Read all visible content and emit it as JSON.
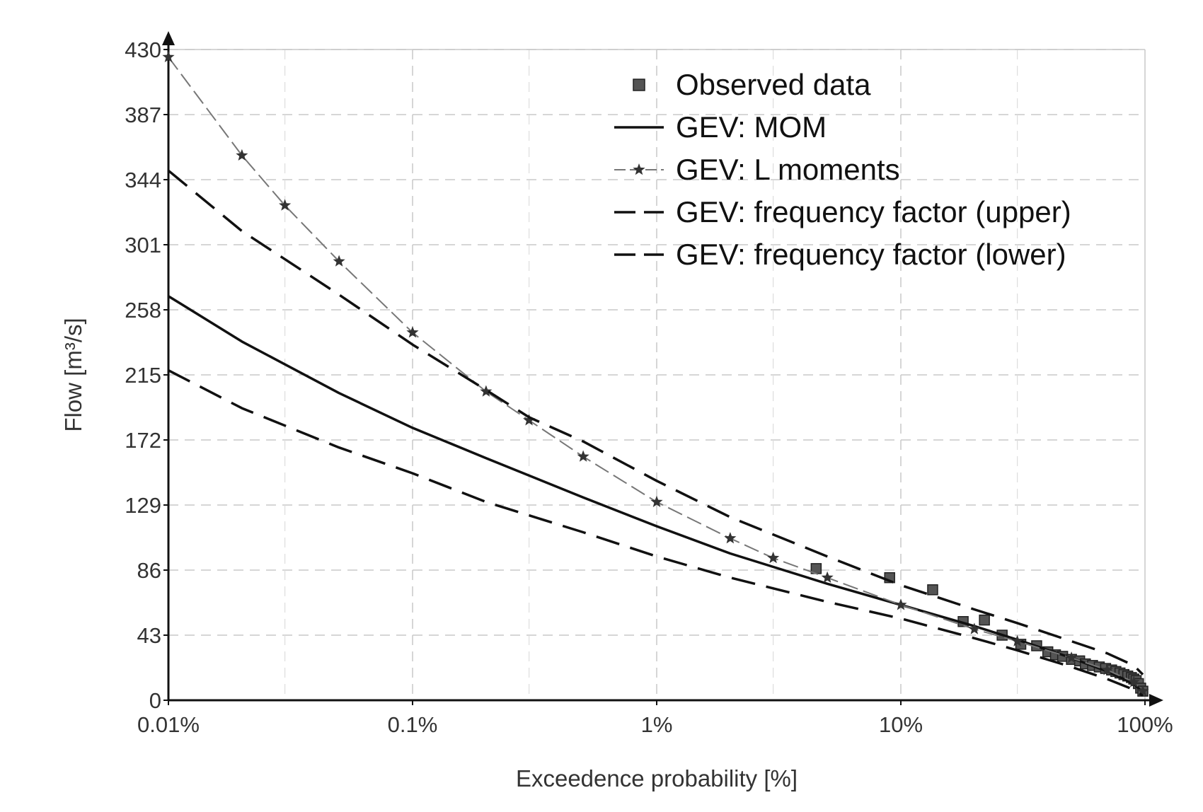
{
  "chart_data": {
    "type": "line",
    "xlabel": "Exceedence probability [%]",
    "ylabel": "Flow [m³/s]",
    "x_scale": "log",
    "xlim": [
      0.01,
      100
    ],
    "ylim": [
      0,
      430
    ],
    "x_ticks": [
      0.01,
      0.1,
      1,
      10,
      100
    ],
    "x_tick_labels": [
      "0.01%",
      "0.1%",
      "1%",
      "10%",
      "100%"
    ],
    "y_ticks": [
      0,
      43,
      86,
      129,
      172,
      215,
      258,
      301,
      344,
      387,
      430
    ],
    "y_tick_labels": [
      "0",
      "43",
      "86",
      "129",
      "172",
      "215",
      "258",
      "301",
      "344",
      "387",
      "430"
    ],
    "grid": true,
    "legend_position": "top-right",
    "series": [
      {
        "name": "Observed data",
        "style": "markers",
        "marker": "square",
        "color": "#555555",
        "points": [
          [
            4.5,
            87
          ],
          [
            9,
            81
          ],
          [
            13.5,
            73
          ],
          [
            18,
            52
          ],
          [
            22,
            53
          ],
          [
            26,
            43
          ],
          [
            31,
            37
          ],
          [
            36,
            36
          ],
          [
            40,
            32
          ],
          [
            43,
            30
          ],
          [
            46,
            29
          ],
          [
            50,
            27
          ],
          [
            54,
            26
          ],
          [
            57,
            24
          ],
          [
            61,
            23
          ],
          [
            65,
            22
          ],
          [
            69,
            21
          ],
          [
            73,
            20
          ],
          [
            76,
            19
          ],
          [
            79,
            18
          ],
          [
            82,
            17
          ],
          [
            85,
            16
          ],
          [
            88,
            15
          ],
          [
            90,
            14
          ],
          [
            92,
            13
          ],
          [
            94,
            11
          ],
          [
            96,
            8
          ],
          [
            98,
            6
          ]
        ]
      },
      {
        "name": "GEV: MOM",
        "style": "solid",
        "color": "#111111",
        "points": [
          [
            0.01,
            267
          ],
          [
            0.02,
            237
          ],
          [
            0.05,
            203
          ],
          [
            0.1,
            180
          ],
          [
            0.2,
            160
          ],
          [
            0.5,
            134
          ],
          [
            1,
            115
          ],
          [
            2,
            97
          ],
          [
            5,
            77
          ],
          [
            10,
            63
          ],
          [
            20,
            49
          ],
          [
            30,
            40
          ],
          [
            50,
            28
          ],
          [
            70,
            19
          ],
          [
            90,
            11
          ],
          [
            98,
            5
          ]
        ]
      },
      {
        "name": "GEV: L moments",
        "style": "dashed-star",
        "marker": "star",
        "color": "#777777",
        "points": [
          [
            0.01,
            425
          ],
          [
            0.02,
            360
          ],
          [
            0.03,
            327
          ],
          [
            0.05,
            290
          ],
          [
            0.1,
            243
          ],
          [
            0.2,
            204
          ],
          [
            0.3,
            185
          ],
          [
            0.5,
            161
          ],
          [
            1,
            131
          ],
          [
            2,
            107
          ],
          [
            3,
            94
          ],
          [
            5,
            81
          ],
          [
            10,
            63
          ],
          [
            20,
            47
          ],
          [
            30,
            39
          ],
          [
            50,
            28
          ],
          [
            70,
            20
          ],
          [
            90,
            12
          ],
          [
            98,
            6
          ]
        ]
      },
      {
        "name": "GEV: frequency factor (upper)",
        "style": "dashed",
        "color": "#111111",
        "points": [
          [
            0.01,
            350
          ],
          [
            0.02,
            310
          ],
          [
            0.05,
            268
          ],
          [
            0.1,
            235
          ],
          [
            0.2,
            205
          ],
          [
            0.3,
            187
          ],
          [
            0.5,
            171
          ],
          [
            1,
            145
          ],
          [
            2,
            121
          ],
          [
            5,
            95
          ],
          [
            10,
            76
          ],
          [
            20,
            60
          ],
          [
            30,
            51
          ],
          [
            50,
            39
          ],
          [
            70,
            31
          ],
          [
            90,
            23
          ],
          [
            98,
            17
          ]
        ]
      },
      {
        "name": "GEV: frequency factor (lower)",
        "style": "dashed",
        "color": "#111111",
        "points": [
          [
            0.01,
            218
          ],
          [
            0.02,
            193
          ],
          [
            0.05,
            167
          ],
          [
            0.1,
            150
          ],
          [
            0.2,
            131
          ],
          [
            0.5,
            111
          ],
          [
            1,
            95
          ],
          [
            2,
            81
          ],
          [
            5,
            65
          ],
          [
            10,
            54
          ],
          [
            20,
            41
          ],
          [
            30,
            33
          ],
          [
            50,
            22
          ],
          [
            70,
            14
          ],
          [
            90,
            7
          ],
          [
            98,
            3
          ]
        ]
      }
    ]
  }
}
